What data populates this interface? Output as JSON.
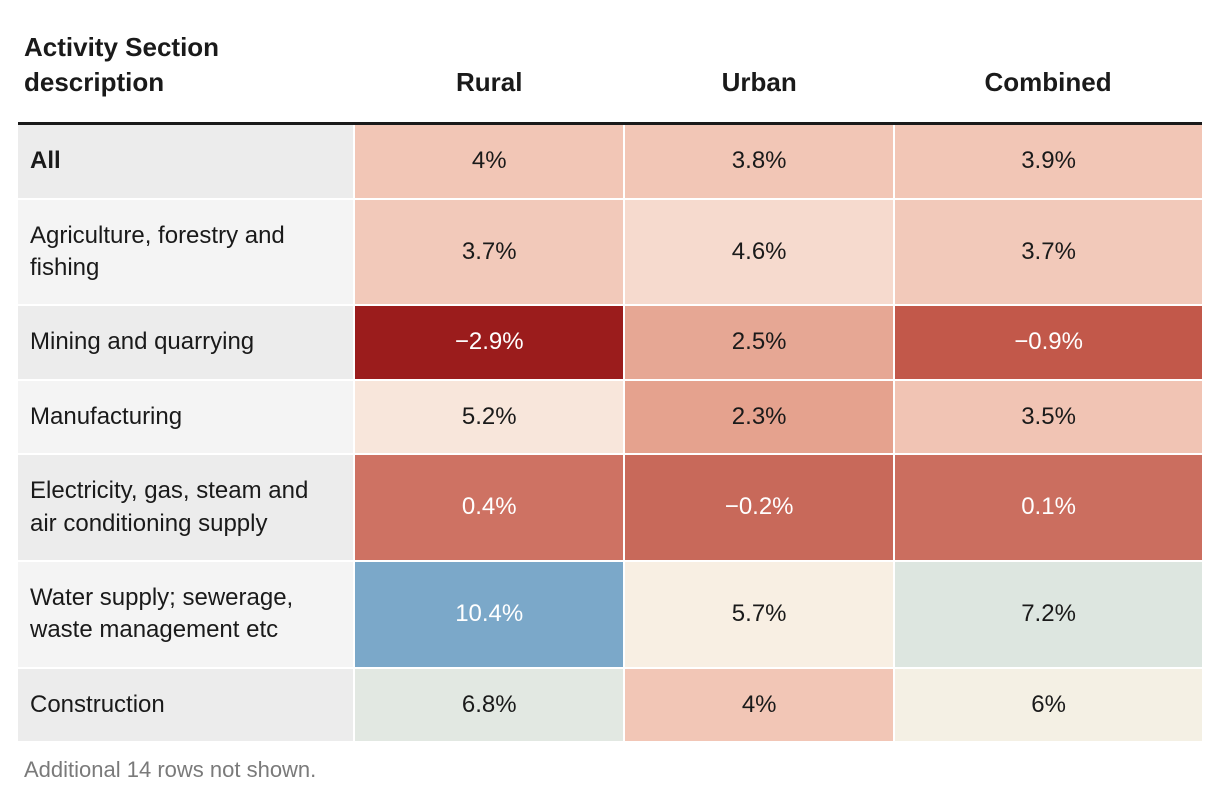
{
  "table": {
    "type": "table",
    "columns": [
      {
        "key": "desc",
        "label": "Activity Section description",
        "width_pct": 28.4,
        "align": "left",
        "header_align": "left"
      },
      {
        "key": "rural",
        "label": "Rural",
        "width_pct": 22.8,
        "align": "center",
        "header_align": "center"
      },
      {
        "key": "urban",
        "label": "Urban",
        "width_pct": 22.8,
        "align": "center",
        "header_align": "center"
      },
      {
        "key": "combined",
        "label": "Combined",
        "width_pct": 26.0,
        "align": "center",
        "header_align": "center"
      }
    ],
    "label_bg_default": "#ececec",
    "label_bg_alt": "#f4f4f4",
    "header_border_color": "#1a1a1a",
    "header_fontsize_pt": 20,
    "body_fontsize_pt": 18,
    "text_color_dark": "#1a1a1a",
    "text_color_light": "#ffffff",
    "rows": [
      {
        "bold": true,
        "label": "All",
        "cells": [
          {
            "text": "4%",
            "bg": "#f2c6b6",
            "fg": "#1a1a1a"
          },
          {
            "text": "3.8%",
            "bg": "#f2c6b6",
            "fg": "#1a1a1a"
          },
          {
            "text": "3.9%",
            "bg": "#f2c6b6",
            "fg": "#1a1a1a"
          }
        ]
      },
      {
        "label": "Agriculture, forestry and fishing",
        "cells": [
          {
            "text": "3.7%",
            "bg": "#f2c9ba",
            "fg": "#1a1a1a"
          },
          {
            "text": "4.6%",
            "bg": "#f6dace",
            "fg": "#1a1a1a"
          },
          {
            "text": "3.7%",
            "bg": "#f2c9ba",
            "fg": "#1a1a1a"
          }
        ]
      },
      {
        "label": "Mining and quarrying",
        "cells": [
          {
            "text": "−2.9%",
            "bg": "#9b1c1c",
            "fg": "#ffffff"
          },
          {
            "text": "2.5%",
            "bg": "#e6a794",
            "fg": "#1a1a1a"
          },
          {
            "text": "−0.9%",
            "bg": "#c2584a",
            "fg": "#ffffff"
          }
        ]
      },
      {
        "label": "Manufacturing",
        "cells": [
          {
            "text": "5.2%",
            "bg": "#f8e6db",
            "fg": "#1a1a1a"
          },
          {
            "text": "2.3%",
            "bg": "#e5a28e",
            "fg": "#1a1a1a"
          },
          {
            "text": "3.5%",
            "bg": "#f1c4b4",
            "fg": "#1a1a1a"
          }
        ]
      },
      {
        "label": "Electricity, gas, steam and air conditioning supply",
        "cells": [
          {
            "text": "0.4%",
            "bg": "#ce7263",
            "fg": "#ffffff"
          },
          {
            "text": "−0.2%",
            "bg": "#c8695a",
            "fg": "#ffffff"
          },
          {
            "text": "0.1%",
            "bg": "#cb6e5f",
            "fg": "#ffffff"
          }
        ]
      },
      {
        "label": "Water supply; sewerage, waste management etc",
        "cells": [
          {
            "text": "10.4%",
            "bg": "#7ba8c9",
            "fg": "#ffffff"
          },
          {
            "text": "5.7%",
            "bg": "#f8efe3",
            "fg": "#1a1a1a"
          },
          {
            "text": "7.2%",
            "bg": "#dde6e0",
            "fg": "#1a1a1a"
          }
        ]
      },
      {
        "label": "Construction",
        "cells": [
          {
            "text": "6.8%",
            "bg": "#e2e8e2",
            "fg": "#1a1a1a"
          },
          {
            "text": "4%",
            "bg": "#f2c6b6",
            "fg": "#1a1a1a"
          },
          {
            "text": "6%",
            "bg": "#f4f0e4",
            "fg": "#1a1a1a"
          }
        ]
      }
    ],
    "footnote": "Additional 14 rows not shown."
  }
}
